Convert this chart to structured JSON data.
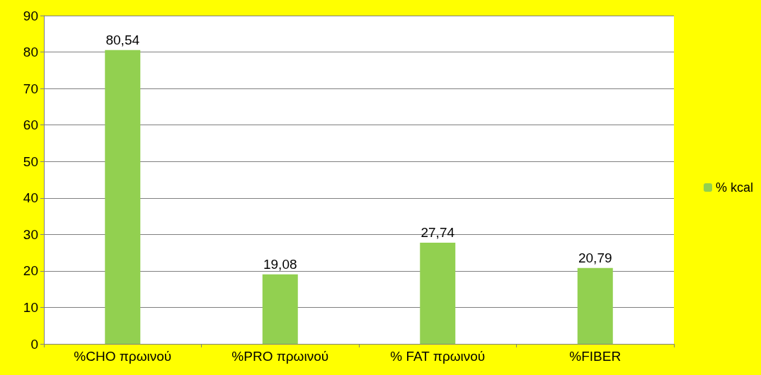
{
  "chart_data": {
    "type": "bar",
    "categories": [
      "%CHO πρωινού",
      "%PRO πρωινού",
      "% FAT πρωινού",
      "%FIBER"
    ],
    "series": [
      {
        "name": "% kcal",
        "color": "#92d050",
        "values": [
          80.54,
          19.08,
          27.74,
          20.79
        ],
        "value_labels": [
          "80,54",
          "19,08",
          "27,74",
          "20,79"
        ]
      }
    ],
    "ylim": [
      0,
      90
    ],
    "yticks": [
      0,
      10,
      20,
      30,
      40,
      50,
      60,
      70,
      80,
      90
    ],
    "grid": "y",
    "legend": "right"
  }
}
